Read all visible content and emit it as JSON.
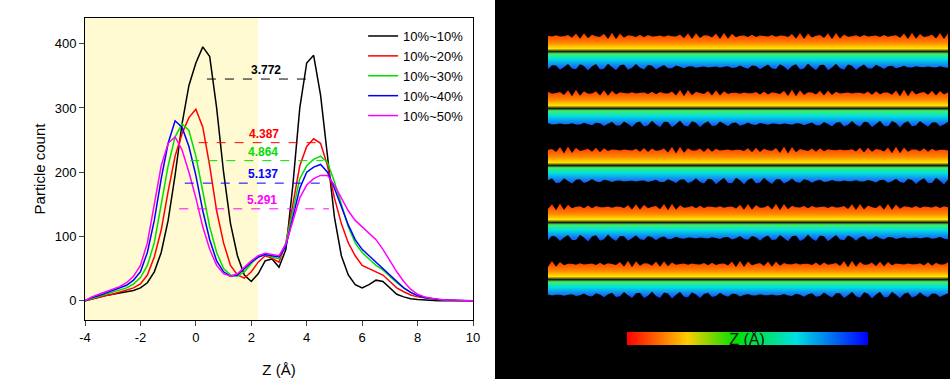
{
  "chart_data": {
    "type": "line",
    "x_label": "Z (Å)",
    "y_label": "Particle count",
    "xlim": [
      -4,
      10
    ],
    "ylim": [
      -30,
      440
    ],
    "xticks": [
      -4,
      -2,
      0,
      2,
      4,
      6,
      8,
      10
    ],
    "yticks": [
      0,
      100,
      200,
      300,
      400
    ],
    "grid": false,
    "legend": "upper right",
    "x": [
      -4,
      -3.75,
      -3.5,
      -3.25,
      -3,
      -2.75,
      -2.5,
      -2.25,
      -2,
      -1.75,
      -1.5,
      -1.25,
      -1,
      -0.75,
      -0.5,
      -0.25,
      0,
      0.25,
      0.5,
      0.75,
      1,
      1.25,
      1.5,
      1.75,
      2,
      2.25,
      2.5,
      2.75,
      3,
      3.25,
      3.5,
      3.75,
      4,
      4.25,
      4.5,
      4.75,
      5,
      5.25,
      5.5,
      5.75,
      6,
      6.25,
      6.5,
      6.75,
      7,
      7.25,
      7.5,
      7.75,
      8,
      8.25,
      8.5,
      8.75,
      9,
      9.25,
      9.5,
      9.75,
      10
    ],
    "series": [
      {
        "name": "10%~10%",
        "color": "#000000",
        "values": [
          0,
          3,
          5,
          8,
          10,
          12,
          14,
          16,
          20,
          28,
          45,
          75,
          125,
          195,
          275,
          335,
          370,
          395,
          380,
          300,
          200,
          120,
          70,
          40,
          30,
          42,
          62,
          65,
          52,
          80,
          180,
          300,
          370,
          382,
          320,
          220,
          130,
          70,
          40,
          25,
          20,
          25,
          32,
          30,
          20,
          10,
          6,
          3,
          2,
          1,
          1,
          0,
          0,
          0,
          0,
          0,
          0
        ]
      },
      {
        "name": "10%~20%",
        "color": "#ff0000",
        "values": [
          0,
          3,
          5,
          8,
          10,
          13,
          16,
          20,
          26,
          40,
          68,
          110,
          170,
          225,
          260,
          285,
          298,
          270,
          210,
          140,
          90,
          55,
          40,
          35,
          45,
          60,
          70,
          66,
          60,
          90,
          150,
          210,
          240,
          252,
          245,
          210,
          160,
          120,
          90,
          70,
          55,
          50,
          45,
          40,
          30,
          20,
          14,
          9,
          6,
          4,
          3,
          2,
          1,
          1,
          0,
          0,
          0
        ]
      },
      {
        "name": "10%~30%",
        "color": "#00e000",
        "values": [
          0,
          4,
          7,
          10,
          13,
          16,
          20,
          26,
          36,
          55,
          90,
          150,
          210,
          255,
          275,
          265,
          225,
          170,
          115,
          75,
          50,
          40,
          38,
          45,
          58,
          68,
          72,
          68,
          65,
          90,
          140,
          190,
          210,
          220,
          225,
          215,
          185,
          150,
          115,
          90,
          75,
          65,
          55,
          48,
          38,
          28,
          20,
          13,
          8,
          5,
          3,
          2,
          1,
          1,
          0,
          0,
          0
        ]
      },
      {
        "name": "10%~40%",
        "color": "#0000ff",
        "values": [
          0,
          5,
          8,
          12,
          15,
          19,
          24,
          32,
          45,
          75,
          125,
          190,
          245,
          280,
          270,
          240,
          195,
          140,
          95,
          62,
          45,
          38,
          40,
          50,
          60,
          68,
          72,
          70,
          68,
          85,
          130,
          175,
          200,
          208,
          212,
          200,
          175,
          145,
          118,
          95,
          80,
          70,
          60,
          50,
          40,
          30,
          20,
          13,
          8,
          5,
          3,
          2,
          1,
          1,
          0,
          0,
          0
        ]
      },
      {
        "name": "10%~50%",
        "color": "#ff00ff",
        "values": [
          0,
          6,
          10,
          14,
          18,
          22,
          28,
          38,
          55,
          90,
          150,
          210,
          245,
          255,
          235,
          200,
          160,
          115,
          80,
          55,
          42,
          38,
          42,
          52,
          62,
          70,
          74,
          72,
          70,
          88,
          125,
          160,
          180,
          190,
          195,
          195,
          180,
          160,
          140,
          125,
          115,
          105,
          95,
          80,
          62,
          45,
          30,
          18,
          10,
          6,
          4,
          2,
          1,
          1,
          0,
          0,
          0
        ]
      }
    ],
    "shaded_xrange": [
      -4,
      2.24
    ],
    "reference_lines": [
      {
        "text": "3.772",
        "y": 345,
        "x": [
          0.4,
          4.25
        ],
        "color": "#000000"
      },
      {
        "text": "4.387",
        "y": 246,
        "x": [
          0.1,
          4.4
        ],
        "color": "#ff0000"
      },
      {
        "text": "4.864",
        "y": 218,
        "x": [
          -0.2,
          4.6
        ],
        "color": "#00e000"
      },
      {
        "text": "5.137",
        "y": 183,
        "x": [
          -0.4,
          4.7
        ],
        "color": "#0000ff"
      },
      {
        "text": "5.291",
        "y": 143,
        "x": [
          -0.6,
          4.8
        ],
        "color": "#ff00ff"
      }
    ]
  },
  "panel": {
    "layers": 5,
    "colorbar_label": "Z (Å)"
  }
}
